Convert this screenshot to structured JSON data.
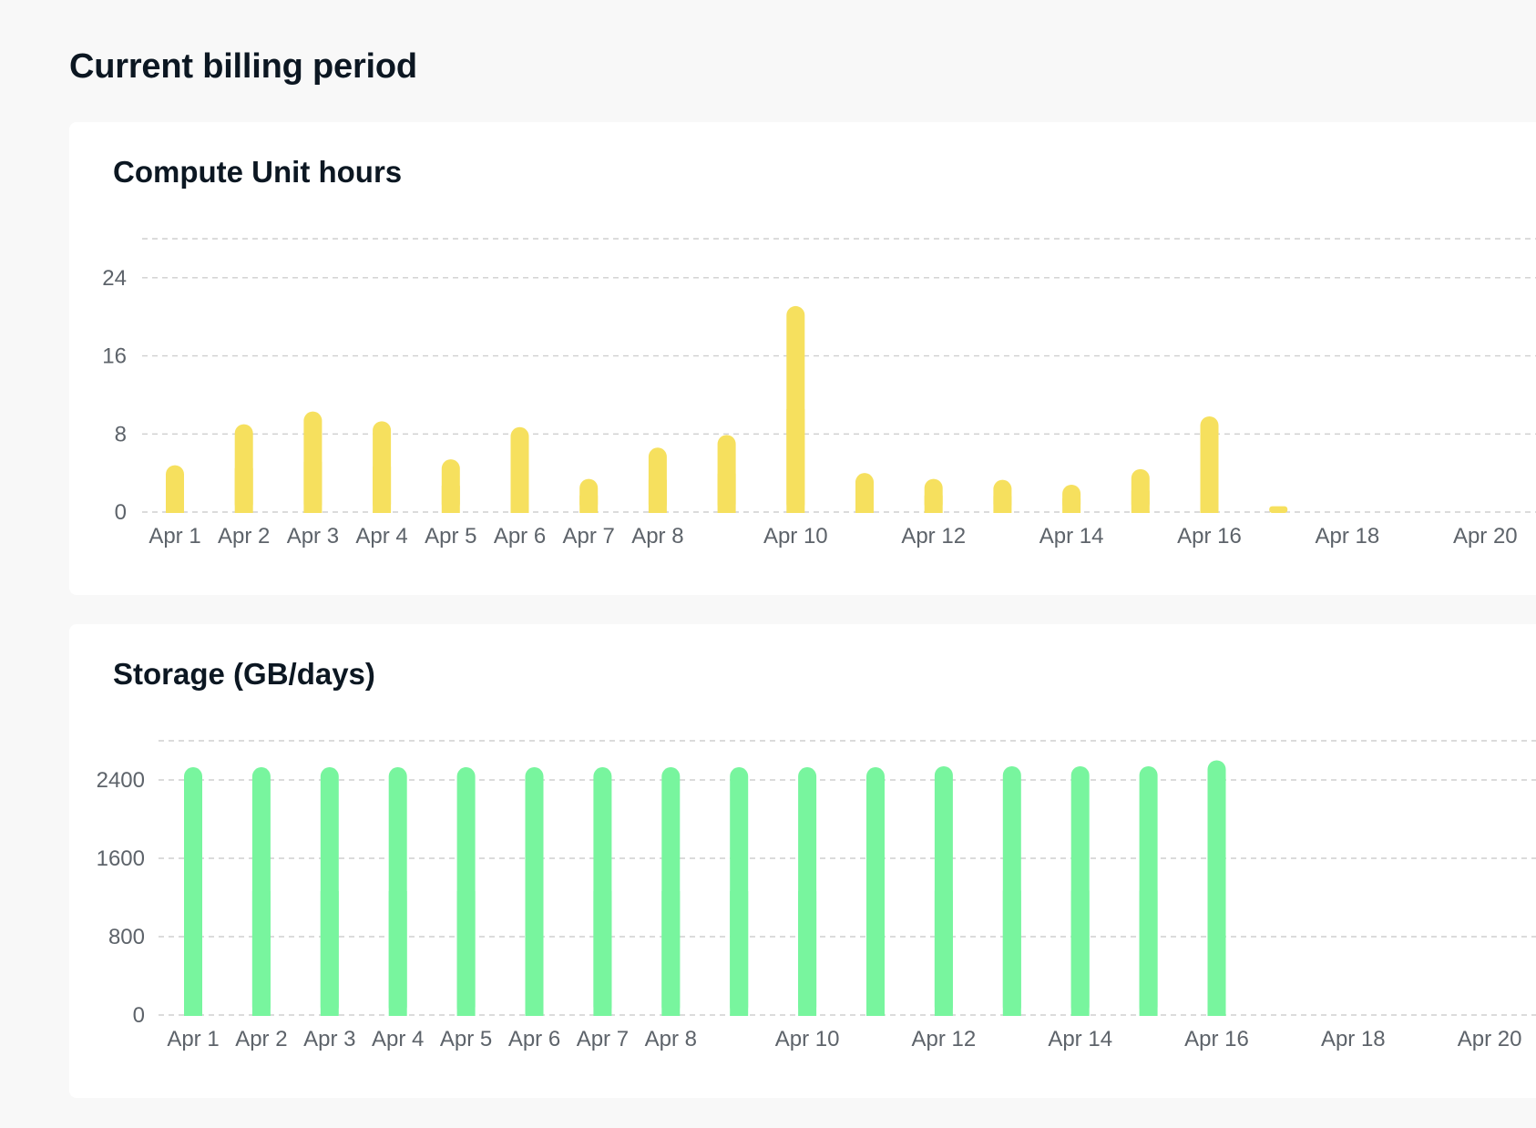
{
  "page": {
    "title": "Current billing period"
  },
  "cards": [
    {
      "title": "Compute Unit hours"
    },
    {
      "title": "Storage (GB/days)"
    }
  ],
  "chart_data": [
    {
      "type": "bar",
      "title": "Compute Unit hours",
      "categories": [
        "Apr 1",
        "Apr 2",
        "Apr 3",
        "Apr 4",
        "Apr 5",
        "Apr 6",
        "Apr 7",
        "Apr 8",
        "Apr 9",
        "Apr 10",
        "Apr 11",
        "Apr 12",
        "Apr 13",
        "Apr 14",
        "Apr 15",
        "Apr 16",
        "Apr 17",
        "Apr 18",
        "Apr 19",
        "Apr 20"
      ],
      "x_tick_labels": [
        "Apr 1",
        "Apr 2",
        "Apr 3",
        "Apr 4",
        "Apr 5",
        "Apr 6",
        "Apr 7",
        "Apr 8",
        "",
        "Apr 10",
        "",
        "Apr 12",
        "",
        "Apr 14",
        "",
        "Apr 16",
        "",
        "Apr 18",
        "",
        "Apr 20"
      ],
      "values": [
        4.8,
        9.0,
        10.3,
        9.3,
        5.4,
        8.7,
        3.4,
        6.6,
        7.9,
        21.1,
        4.0,
        3.4,
        3.3,
        2.8,
        4.4,
        9.8,
        0.6,
        null,
        null,
        null
      ],
      "y_ticks": [
        0,
        8,
        16,
        24
      ],
      "ylim": [
        0,
        28
      ],
      "color": "#f6e05e",
      "grid": true
    },
    {
      "type": "bar",
      "title": "Storage (GB/days)",
      "categories": [
        "Apr 1",
        "Apr 2",
        "Apr 3",
        "Apr 4",
        "Apr 5",
        "Apr 6",
        "Apr 7",
        "Apr 8",
        "Apr 9",
        "Apr 10",
        "Apr 11",
        "Apr 12",
        "Apr 13",
        "Apr 14",
        "Apr 15",
        "Apr 16",
        "Apr 17",
        "Apr 18",
        "Apr 19",
        "Apr 20"
      ],
      "x_tick_labels": [
        "Apr 1",
        "Apr 2",
        "Apr 3",
        "Apr 4",
        "Apr 5",
        "Apr 6",
        "Apr 7",
        "Apr 8",
        "",
        "Apr 10",
        "",
        "Apr 12",
        "",
        "Apr 14",
        "",
        "Apr 16",
        "",
        "Apr 18",
        "",
        "Apr 20"
      ],
      "values": [
        2530,
        2530,
        2530,
        2530,
        2530,
        2530,
        2530,
        2530,
        2530,
        2530,
        2530,
        2540,
        2540,
        2540,
        2540,
        2600,
        null,
        null,
        null,
        null
      ],
      "y_ticks": [
        0,
        800,
        1600,
        2400
      ],
      "ylim": [
        0,
        2800
      ],
      "color": "#78f59e",
      "grid": true
    }
  ]
}
